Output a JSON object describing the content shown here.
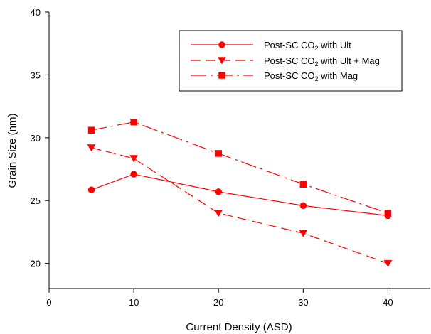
{
  "chart_data": {
    "type": "line",
    "xlabel": "Current Density (ASD)",
    "ylabel": "Grain Size (nm)",
    "xlim": [
      0,
      45
    ],
    "ylim": [
      18,
      40
    ],
    "xticks": [
      0,
      10,
      20,
      30,
      40
    ],
    "yticks": [
      20,
      25,
      30,
      35,
      40
    ],
    "grid": false,
    "legend_position": "top-right",
    "color": "#ff0000",
    "series": [
      {
        "name": "Post-SC CO2 with Ult",
        "name_parts": [
          "Post-SC CO",
          "2",
          " with Ult"
        ],
        "marker": "circle",
        "line_style": "solid",
        "x": [
          5,
          10,
          20,
          30,
          40
        ],
        "y": [
          25.85,
          27.1,
          25.7,
          24.6,
          23.8
        ]
      },
      {
        "name": "Post-SC CO2 with Ult + Mag",
        "name_parts": [
          "Post-SC CO",
          "2",
          " with Ult + Mag"
        ],
        "marker": "triangle-down",
        "line_style": "dashed",
        "x": [
          5,
          10,
          20,
          30,
          40
        ],
        "y": [
          29.2,
          28.35,
          24.0,
          22.4,
          20.0
        ]
      },
      {
        "name": "Post-SC CO2 with Mag",
        "name_parts": [
          "Post-SC CO",
          "2",
          " with Mag"
        ],
        "marker": "square",
        "line_style": "dash-dot",
        "x": [
          5,
          10,
          20,
          30,
          40
        ],
        "y": [
          30.6,
          31.25,
          28.75,
          26.3,
          24.0
        ]
      }
    ]
  }
}
